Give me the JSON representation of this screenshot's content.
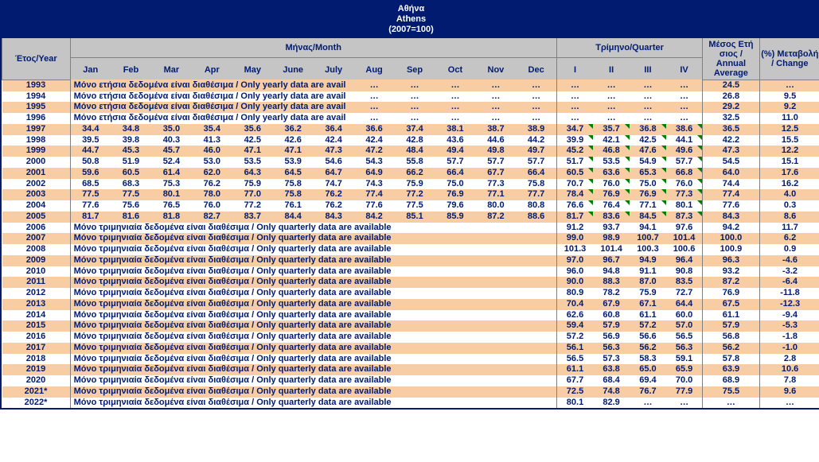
{
  "title": {
    "l1": "Αθήνα",
    "l2": "Athens",
    "l3": "(2007=100)"
  },
  "headers": {
    "year": "Έτος/Year",
    "month_section": "Μήνας/Month",
    "quarter_section": "Τρίμηνο/Quarter",
    "annual": "Μέσος Ετή σιος / Annual Average",
    "change": "(%) Μεταβολή / Change",
    "months": [
      "Jan",
      "Feb",
      "Mar",
      "Apr",
      "May",
      "June",
      "July",
      "Aug",
      "Sep",
      "Oct",
      "Nov",
      "Dec"
    ],
    "quarters": [
      "I",
      "II",
      "III",
      "IV"
    ]
  },
  "yearly_note": "Μόνο ετήσια δεδομένα είναι διαθέσιμα / Only yearly data are avail",
  "quarterly_note": "Μόνο τριμηνιαία δεδομένα είναι διαθέσιμα / Only quarterly data are available",
  "ellipsis": "…",
  "colors": {
    "header_bg": "#001b70",
    "grey_bg": "#c5c5c5",
    "row_odd": "#f9cda3",
    "row_even": "#ffffff",
    "text": "#001b70"
  },
  "rows": [
    {
      "year": "1993",
      "type": "yearly",
      "annual": "24.5",
      "change": "…"
    },
    {
      "year": "1994",
      "type": "yearly",
      "annual": "26.8",
      "change": "9.5"
    },
    {
      "year": "1995",
      "type": "yearly",
      "annual": "29.2",
      "change": "9.2"
    },
    {
      "year": "1996",
      "type": "yearly",
      "annual": "32.5",
      "change": "11.0"
    },
    {
      "year": "1997",
      "type": "monthly",
      "m": [
        "34.4",
        "34.8",
        "35.0",
        "35.4",
        "35.6",
        "36.2",
        "36.4",
        "36.6",
        "37.4",
        "38.1",
        "38.7",
        "38.9"
      ],
      "q": [
        "34.7",
        "35.7",
        "36.8",
        "38.6"
      ],
      "annual": "36.5",
      "change": "12.5",
      "tri": true
    },
    {
      "year": "1998",
      "type": "monthly",
      "m": [
        "39.5",
        "39.8",
        "40.3",
        "41.3",
        "42.5",
        "42.6",
        "42.4",
        "42.4",
        "42.8",
        "43.6",
        "44.6",
        "44.2"
      ],
      "q": [
        "39.9",
        "42.1",
        "42.5",
        "44.1"
      ],
      "annual": "42.2",
      "change": "15.5",
      "tri": true
    },
    {
      "year": "1999",
      "type": "monthly",
      "m": [
        "44.7",
        "45.3",
        "45.7",
        "46.0",
        "47.1",
        "47.1",
        "47.3",
        "47.2",
        "48.4",
        "49.4",
        "49.8",
        "49.7"
      ],
      "q": [
        "45.2",
        "46.8",
        "47.6",
        "49.6"
      ],
      "annual": "47.3",
      "change": "12.2",
      "tri": true
    },
    {
      "year": "2000",
      "type": "monthly",
      "m": [
        "50.8",
        "51.9",
        "52.4",
        "53.0",
        "53.5",
        "53.9",
        "54.6",
        "54.3",
        "55.8",
        "57.7",
        "57.7",
        "57.7"
      ],
      "q": [
        "51.7",
        "53.5",
        "54.9",
        "57.7"
      ],
      "annual": "54.5",
      "change": "15.1",
      "tri": true
    },
    {
      "year": "2001",
      "type": "monthly",
      "m": [
        "59.6",
        "60.5",
        "61.4",
        "62.0",
        "64.3",
        "64.5",
        "64.7",
        "64.9",
        "66.2",
        "66.4",
        "67.7",
        "66.4"
      ],
      "q": [
        "60.5",
        "63.6",
        "65.3",
        "66.8"
      ],
      "annual": "64.0",
      "change": "17.6",
      "tri": true
    },
    {
      "year": "2002",
      "type": "monthly",
      "m": [
        "68.5",
        "68.3",
        "75.3",
        "76.2",
        "75.9",
        "75.8",
        "74.7",
        "74.3",
        "75.9",
        "75.0",
        "77.3",
        "75.8"
      ],
      "q": [
        "70.7",
        "76.0",
        "75.0",
        "76.0"
      ],
      "annual": "74.4",
      "change": "16.2",
      "tri": true
    },
    {
      "year": "2003",
      "type": "monthly",
      "m": [
        "77.5",
        "77.5",
        "80.1",
        "78.0",
        "77.0",
        "75.8",
        "76.2",
        "77.4",
        "77.2",
        "76.9",
        "77.1",
        "77.7"
      ],
      "q": [
        "78.4",
        "76.9",
        "76.9",
        "77.3"
      ],
      "annual": "77.4",
      "change": "4.0",
      "tri": true
    },
    {
      "year": "2004",
      "type": "monthly",
      "m": [
        "77.6",
        "75.6",
        "76.5",
        "76.0",
        "77.2",
        "76.1",
        "76.2",
        "77.6",
        "77.5",
        "79.6",
        "80.0",
        "80.8"
      ],
      "q": [
        "76.6",
        "76.4",
        "77.1",
        "80.1"
      ],
      "annual": "77.6",
      "change": "0.3",
      "tri": true
    },
    {
      "year": "2005",
      "type": "monthly",
      "m": [
        "81.7",
        "81.6",
        "81.8",
        "82.7",
        "83.7",
        "84.4",
        "84.3",
        "84.2",
        "85.1",
        "85.9",
        "87.2",
        "88.6"
      ],
      "q": [
        "81.7",
        "83.6",
        "84.5",
        "87.3"
      ],
      "annual": "84.3",
      "change": "8.6",
      "tri": true
    },
    {
      "year": "2006",
      "type": "quarterly",
      "q": [
        "91.2",
        "93.7",
        "94.1",
        "97.6"
      ],
      "annual": "94.2",
      "change": "11.7"
    },
    {
      "year": "2007",
      "type": "quarterly",
      "q": [
        "99.0",
        "98.9",
        "100.7",
        "101.4"
      ],
      "annual": "100.0",
      "change": "6.2"
    },
    {
      "year": "2008",
      "type": "quarterly",
      "q": [
        "101.3",
        "101.4",
        "100.3",
        "100.6"
      ],
      "annual": "100.9",
      "change": "0.9"
    },
    {
      "year": "2009",
      "type": "quarterly",
      "q": [
        "97.0",
        "96.7",
        "94.9",
        "96.4"
      ],
      "annual": "96.3",
      "change": "-4.6"
    },
    {
      "year": "2010",
      "type": "quarterly",
      "q": [
        "96.0",
        "94.8",
        "91.1",
        "90.8"
      ],
      "annual": "93.2",
      "change": "-3.2"
    },
    {
      "year": "2011",
      "type": "quarterly",
      "q": [
        "90.0",
        "88.3",
        "87.0",
        "83.5"
      ],
      "annual": "87.2",
      "change": "-6.4"
    },
    {
      "year": "2012",
      "type": "quarterly",
      "q": [
        "80.9",
        "78.2",
        "75.9",
        "72.7"
      ],
      "annual": "76.9",
      "change": "-11.8"
    },
    {
      "year": "2013",
      "type": "quarterly",
      "q": [
        "70.4",
        "67.9",
        "67.1",
        "64.4"
      ],
      "annual": "67.5",
      "change": "-12.3"
    },
    {
      "year": "2014",
      "type": "quarterly",
      "q": [
        "62.6",
        "60.8",
        "61.1",
        "60.0"
      ],
      "annual": "61.1",
      "change": "-9.4"
    },
    {
      "year": "2015",
      "type": "quarterly",
      "q": [
        "59.4",
        "57.9",
        "57.2",
        "57.0"
      ],
      "annual": "57.9",
      "change": "-5.3"
    },
    {
      "year": "2016",
      "type": "quarterly",
      "q": [
        "57.2",
        "56.9",
        "56.6",
        "56.5"
      ],
      "annual": "56.8",
      "change": "-1.8"
    },
    {
      "year": "2017",
      "type": "quarterly",
      "q": [
        "56.1",
        "56.3",
        "56.2",
        "56.3"
      ],
      "annual": "56.2",
      "change": "-1.0"
    },
    {
      "year": "2018",
      "type": "quarterly",
      "q": [
        "56.5",
        "57.3",
        "58.3",
        "59.1"
      ],
      "annual": "57.8",
      "change": "2.8"
    },
    {
      "year": "2019",
      "type": "quarterly",
      "q": [
        "61.1",
        "63.8",
        "65.0",
        "65.9"
      ],
      "annual": "63.9",
      "change": "10.6"
    },
    {
      "year": "2020",
      "type": "quarterly",
      "q": [
        "67.7",
        "68.4",
        "69.4",
        "70.0"
      ],
      "annual": "68.9",
      "change": "7.8"
    },
    {
      "year": "2021*",
      "type": "quarterly",
      "q": [
        "72.5",
        "74.8",
        "76.7",
        "77.9"
      ],
      "annual": "75.5",
      "change": "9.6"
    },
    {
      "year": "2022*",
      "type": "quarterly",
      "q": [
        "80.1",
        "82.9",
        "…",
        "…"
      ],
      "annual": "…",
      "change": "…"
    }
  ]
}
